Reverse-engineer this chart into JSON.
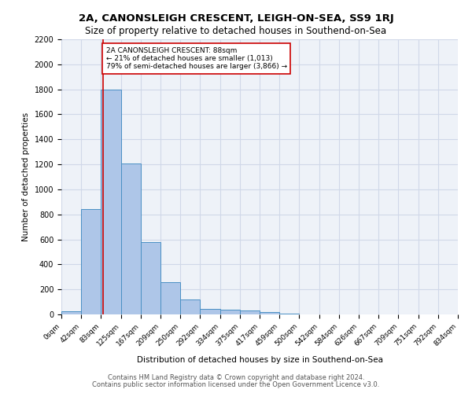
{
  "title1": "2A, CANONSLEIGH CRESCENT, LEIGH-ON-SEA, SS9 1RJ",
  "title2": "Size of property relative to detached houses in Southend-on-Sea",
  "xlabel": "Distribution of detached houses by size in Southend-on-Sea",
  "ylabel": "Number of detached properties",
  "bin_labels": [
    "0sqm",
    "42sqm",
    "83sqm",
    "125sqm",
    "167sqm",
    "209sqm",
    "250sqm",
    "292sqm",
    "334sqm",
    "375sqm",
    "417sqm",
    "459sqm",
    "500sqm",
    "542sqm",
    "584sqm",
    "626sqm",
    "667sqm",
    "709sqm",
    "751sqm",
    "792sqm",
    "834sqm"
  ],
  "bin_edges": [
    0,
    42,
    83,
    125,
    167,
    209,
    250,
    292,
    334,
    375,
    417,
    459,
    500,
    542,
    584,
    626,
    667,
    709,
    751,
    792,
    834
  ],
  "bar_heights": [
    25,
    840,
    1800,
    1210,
    580,
    255,
    120,
    45,
    40,
    30,
    18,
    8,
    0,
    0,
    0,
    0,
    0,
    0,
    0,
    0
  ],
  "bar_color": "#aec6e8",
  "bar_edge_color": "#4a90c4",
  "grid_color": "#d0d8e8",
  "bg_color": "#eef2f8",
  "property_value": 88,
  "vline_color": "#cc0000",
  "annotation_text": "2A CANONSLEIGH CRESCENT: 88sqm\n← 21% of detached houses are smaller (1,013)\n79% of semi-detached houses are larger (3,866) →",
  "annotation_box_color": "#ffffff",
  "annotation_box_edge": "#cc0000",
  "ylim": [
    0,
    2200
  ],
  "yticks": [
    0,
    200,
    400,
    600,
    800,
    1000,
    1200,
    1400,
    1600,
    1800,
    2000,
    2200
  ],
  "footer1": "Contains HM Land Registry data © Crown copyright and database right 2024.",
  "footer2": "Contains public sector information licensed under the Open Government Licence v3.0."
}
